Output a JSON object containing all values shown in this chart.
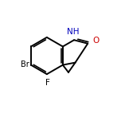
{
  "bg_color": "#ffffff",
  "bond_color": "#000000",
  "bond_width": 1.4,
  "NH_color": "#0000bb",
  "O_color": "#cc0000",
  "Br_color": "#000000",
  "F_color": "#000000",
  "font_size": 7.5,
  "label_NH": "NH",
  "label_O": "O",
  "label_Br": "Br",
  "label_F": "F",
  "xlim": [
    0,
    10
  ],
  "ylim": [
    0,
    10
  ]
}
